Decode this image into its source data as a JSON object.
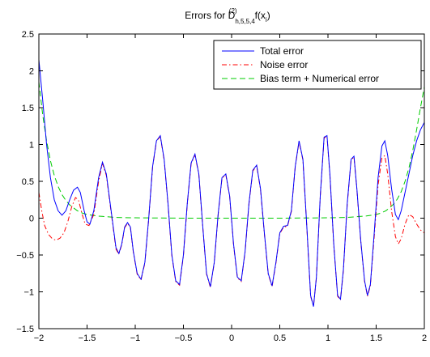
{
  "chart_data": {
    "type": "line",
    "title": "Errors for D",
    "title_superscript": "(2)",
    "title_subscript": "h,5,5,4",
    "title_suffix": "f(x",
    "title_suffix_subscript": "i",
    "title_close": ")",
    "xlim": [
      -2,
      2
    ],
    "ylim": [
      -1.5,
      2.5
    ],
    "xticks": [
      -2,
      -1.5,
      -1,
      -0.5,
      0,
      0.5,
      1,
      1.5,
      2
    ],
    "yticks": [
      -1.5,
      -1,
      -0.5,
      0,
      0.5,
      1,
      1.5,
      2,
      2.5
    ],
    "xtick_labels": [
      "−2",
      "−1.5",
      "−1",
      "−0.5",
      "0",
      "0.5",
      "1",
      "1.5",
      "2"
    ],
    "ytick_labels": [
      "−1.5",
      "−1",
      "−0.5",
      "0",
      "0.5",
      "1",
      "1.5",
      "2",
      "2.5"
    ],
    "grid": false,
    "legend_position": "top-right",
    "series": [
      {
        "name": "Total error",
        "color": "#0000ff",
        "style": "solid",
        "points": [
          [
            -2.0,
            2.15
          ],
          [
            -1.96,
            1.6
          ],
          [
            -1.92,
            1.0
          ],
          [
            -1.88,
            0.55
          ],
          [
            -1.84,
            0.25
          ],
          [
            -1.8,
            0.1
          ],
          [
            -1.76,
            0.04
          ],
          [
            -1.72,
            0.1
          ],
          [
            -1.68,
            0.25
          ],
          [
            -1.64,
            0.38
          ],
          [
            -1.6,
            0.42
          ],
          [
            -1.57,
            0.35
          ],
          [
            -1.53,
            0.1
          ],
          [
            -1.5,
            -0.05
          ],
          [
            -1.47,
            -0.08
          ],
          [
            -1.43,
            0.1
          ],
          [
            -1.38,
            0.55
          ],
          [
            -1.34,
            0.76
          ],
          [
            -1.3,
            0.6
          ],
          [
            -1.25,
            0.1
          ],
          [
            -1.2,
            -0.4
          ],
          [
            -1.17,
            -0.48
          ],
          [
            -1.14,
            -0.35
          ],
          [
            -1.11,
            -0.12
          ],
          [
            -1.08,
            -0.06
          ],
          [
            -1.05,
            -0.12
          ],
          [
            -1.02,
            -0.45
          ],
          [
            -0.98,
            -0.75
          ],
          [
            -0.94,
            -0.83
          ],
          [
            -0.9,
            -0.6
          ],
          [
            -0.86,
            0.0
          ],
          [
            -0.82,
            0.7
          ],
          [
            -0.78,
            1.05
          ],
          [
            -0.74,
            1.12
          ],
          [
            -0.7,
            0.8
          ],
          [
            -0.66,
            0.2
          ],
          [
            -0.62,
            -0.5
          ],
          [
            -0.58,
            -0.85
          ],
          [
            -0.54,
            -0.9
          ],
          [
            -0.5,
            -0.5
          ],
          [
            -0.46,
            0.2
          ],
          [
            -0.42,
            0.75
          ],
          [
            -0.38,
            0.87
          ],
          [
            -0.34,
            0.6
          ],
          [
            -0.3,
            -0.1
          ],
          [
            -0.26,
            -0.75
          ],
          [
            -0.22,
            -0.93
          ],
          [
            -0.18,
            -0.6
          ],
          [
            -0.14,
            0.05
          ],
          [
            -0.1,
            0.55
          ],
          [
            -0.06,
            0.6
          ],
          [
            -0.02,
            0.3
          ],
          [
            0.02,
            -0.35
          ],
          [
            0.06,
            -0.8
          ],
          [
            0.1,
            -0.85
          ],
          [
            0.14,
            -0.45
          ],
          [
            0.18,
            0.2
          ],
          [
            0.22,
            0.65
          ],
          [
            0.26,
            0.72
          ],
          [
            0.3,
            0.4
          ],
          [
            0.34,
            -0.2
          ],
          [
            0.38,
            -0.75
          ],
          [
            0.42,
            -0.92
          ],
          [
            0.46,
            -0.6
          ],
          [
            0.5,
            -0.2
          ],
          [
            0.54,
            -0.11
          ],
          [
            0.58,
            -0.1
          ],
          [
            0.62,
            0.1
          ],
          [
            0.66,
            0.7
          ],
          [
            0.7,
            1.05
          ],
          [
            0.74,
            0.8
          ],
          [
            0.78,
            -0.1
          ],
          [
            0.82,
            -1.05
          ],
          [
            0.85,
            -1.2
          ],
          [
            0.88,
            -0.8
          ],
          [
            0.92,
            0.3
          ],
          [
            0.96,
            1.1
          ],
          [
            0.99,
            1.12
          ],
          [
            1.02,
            0.6
          ],
          [
            1.06,
            -0.35
          ],
          [
            1.1,
            -1.05
          ],
          [
            1.13,
            -1.1
          ],
          [
            1.16,
            -0.7
          ],
          [
            1.2,
            0.2
          ],
          [
            1.24,
            0.8
          ],
          [
            1.27,
            0.84
          ],
          [
            1.3,
            0.4
          ],
          [
            1.34,
            -0.3
          ],
          [
            1.38,
            -0.85
          ],
          [
            1.41,
            -1.05
          ],
          [
            1.44,
            -0.9
          ],
          [
            1.48,
            -0.2
          ],
          [
            1.52,
            0.55
          ],
          [
            1.56,
            0.98
          ],
          [
            1.59,
            1.05
          ],
          [
            1.62,
            0.85
          ],
          [
            1.66,
            0.4
          ],
          [
            1.7,
            0.05
          ],
          [
            1.73,
            -0.02
          ],
          [
            1.76,
            0.1
          ],
          [
            1.8,
            0.35
          ],
          [
            1.84,
            0.6
          ],
          [
            1.88,
            0.85
          ],
          [
            1.92,
            1.05
          ],
          [
            1.96,
            1.2
          ],
          [
            2.0,
            1.3
          ]
        ]
      },
      {
        "name": "Noise error",
        "color": "#ff0000",
        "style": "dashdot",
        "points": [
          [
            -2.0,
            0.35
          ],
          [
            -1.97,
            0.1
          ],
          [
            -1.94,
            -0.1
          ],
          [
            -1.9,
            -0.22
          ],
          [
            -1.86,
            -0.28
          ],
          [
            -1.82,
            -0.3
          ],
          [
            -1.78,
            -0.27
          ],
          [
            -1.74,
            -0.2
          ],
          [
            -1.7,
            -0.05
          ],
          [
            -1.66,
            0.15
          ],
          [
            -1.62,
            0.28
          ],
          [
            -1.59,
            0.25
          ],
          [
            -1.55,
            0.05
          ],
          [
            -1.52,
            -0.08
          ],
          [
            -1.48,
            -0.1
          ],
          [
            -1.43,
            0.05
          ],
          [
            -1.38,
            0.5
          ],
          [
            -1.34,
            0.74
          ],
          [
            -1.3,
            0.58
          ],
          [
            -1.25,
            0.08
          ],
          [
            -1.2,
            -0.42
          ],
          [
            -1.17,
            -0.49
          ],
          [
            -1.14,
            -0.36
          ],
          [
            -1.11,
            -0.13
          ],
          [
            -1.08,
            -0.07
          ],
          [
            -1.05,
            -0.13
          ],
          [
            -1.02,
            -0.46
          ],
          [
            -0.98,
            -0.76
          ],
          [
            -0.94,
            -0.84
          ],
          [
            -0.9,
            -0.61
          ],
          [
            -0.86,
            -0.01
          ],
          [
            -0.82,
            0.69
          ],
          [
            -0.78,
            1.04
          ],
          [
            -0.74,
            1.11
          ],
          [
            -0.7,
            0.79
          ],
          [
            -0.66,
            0.19
          ],
          [
            -0.62,
            -0.51
          ],
          [
            -0.58,
            -0.86
          ],
          [
            -0.54,
            -0.91
          ],
          [
            -0.5,
            -0.51
          ],
          [
            -0.46,
            0.19
          ],
          [
            -0.42,
            0.74
          ],
          [
            -0.38,
            0.86
          ],
          [
            -0.34,
            0.59
          ],
          [
            -0.3,
            -0.11
          ],
          [
            -0.26,
            -0.76
          ],
          [
            -0.22,
            -0.94
          ],
          [
            -0.18,
            -0.61
          ],
          [
            -0.14,
            0.04
          ],
          [
            -0.1,
            0.54
          ],
          [
            -0.06,
            0.59
          ],
          [
            -0.02,
            0.29
          ],
          [
            0.02,
            -0.36
          ],
          [
            0.06,
            -0.81
          ],
          [
            0.1,
            -0.86
          ],
          [
            0.14,
            -0.46
          ],
          [
            0.18,
            0.19
          ],
          [
            0.22,
            0.64
          ],
          [
            0.26,
            0.71
          ],
          [
            0.3,
            0.39
          ],
          [
            0.34,
            -0.21
          ],
          [
            0.38,
            -0.76
          ],
          [
            0.42,
            -0.93
          ],
          [
            0.46,
            -0.61
          ],
          [
            0.5,
            -0.21
          ],
          [
            0.54,
            -0.12
          ],
          [
            0.58,
            -0.11
          ],
          [
            0.62,
            0.09
          ],
          [
            0.66,
            0.69
          ],
          [
            0.7,
            1.04
          ],
          [
            0.74,
            0.79
          ],
          [
            0.78,
            -0.11
          ],
          [
            0.82,
            -1.06
          ],
          [
            0.85,
            -1.19
          ],
          [
            0.88,
            -0.81
          ],
          [
            0.92,
            0.29
          ],
          [
            0.96,
            1.09
          ],
          [
            0.99,
            1.11
          ],
          [
            1.02,
            0.59
          ],
          [
            1.06,
            -0.36
          ],
          [
            1.1,
            -1.06
          ],
          [
            1.13,
            -1.11
          ],
          [
            1.16,
            -0.71
          ],
          [
            1.2,
            0.19
          ],
          [
            1.24,
            0.79
          ],
          [
            1.27,
            0.83
          ],
          [
            1.3,
            0.39
          ],
          [
            1.34,
            -0.31
          ],
          [
            1.38,
            -0.86
          ],
          [
            1.41,
            -1.06
          ],
          [
            1.44,
            -0.92
          ],
          [
            1.48,
            -0.25
          ],
          [
            1.52,
            0.45
          ],
          [
            1.56,
            0.82
          ],
          [
            1.59,
            0.85
          ],
          [
            1.62,
            0.6
          ],
          [
            1.66,
            0.1
          ],
          [
            1.7,
            -0.25
          ],
          [
            1.73,
            -0.35
          ],
          [
            1.76,
            -0.28
          ],
          [
            1.8,
            -0.08
          ],
          [
            1.84,
            0.05
          ],
          [
            1.88,
            0.02
          ],
          [
            1.92,
            -0.08
          ],
          [
            1.96,
            -0.16
          ],
          [
            2.0,
            -0.2
          ]
        ]
      },
      {
        "name": "Bias term + Numerical error",
        "color": "#00cc00",
        "style": "dashed",
        "points": [
          [
            -2.0,
            1.85
          ],
          [
            -1.96,
            1.4
          ],
          [
            -1.92,
            1.05
          ],
          [
            -1.88,
            0.78
          ],
          [
            -1.84,
            0.58
          ],
          [
            -1.8,
            0.43
          ],
          [
            -1.76,
            0.32
          ],
          [
            -1.72,
            0.24
          ],
          [
            -1.68,
            0.18
          ],
          [
            -1.64,
            0.14
          ],
          [
            -1.6,
            0.1
          ],
          [
            -1.55,
            0.07
          ],
          [
            -1.5,
            0.05
          ],
          [
            -1.4,
            0.03
          ],
          [
            -1.3,
            0.02
          ],
          [
            -1.2,
            0.01
          ],
          [
            -1.0,
            0.005
          ],
          [
            -0.5,
            0.0
          ],
          [
            0.0,
            0.0
          ],
          [
            0.5,
            0.0
          ],
          [
            1.0,
            0.005
          ],
          [
            1.2,
            0.01
          ],
          [
            1.3,
            0.02
          ],
          [
            1.4,
            0.03
          ],
          [
            1.5,
            0.05
          ],
          [
            1.55,
            0.07
          ],
          [
            1.6,
            0.1
          ],
          [
            1.64,
            0.14
          ],
          [
            1.68,
            0.19
          ],
          [
            1.72,
            0.26
          ],
          [
            1.76,
            0.36
          ],
          [
            1.8,
            0.5
          ],
          [
            1.84,
            0.68
          ],
          [
            1.88,
            0.92
          ],
          [
            1.92,
            1.2
          ],
          [
            1.96,
            1.5
          ],
          [
            2.0,
            1.78
          ]
        ]
      }
    ]
  }
}
